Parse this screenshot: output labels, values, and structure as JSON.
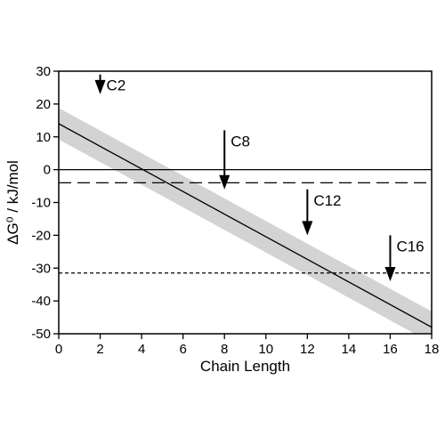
{
  "chart_data": {
    "type": "line",
    "xlabel": "Chain Length",
    "ylabel": "ΔG⁰ / kJ/mol",
    "xlim": [
      0,
      18
    ],
    "ylim": [
      -50,
      30
    ],
    "xticks": [
      "0",
      "2",
      "4",
      "6",
      "8",
      "10",
      "12",
      "14",
      "16",
      "18"
    ],
    "yticks": [
      "30",
      "20",
      "10",
      "0",
      "-10",
      "-20",
      "-30",
      "-40",
      "-50"
    ],
    "grid": false,
    "series": [
      {
        "style": "solid-line",
        "x": [
          0,
          18
        ],
        "y": [
          14,
          -48
        ]
      }
    ],
    "band": {
      "x": [
        0,
        18
      ],
      "upper": [
        18.8,
        -43.2
      ],
      "lower": [
        9.2,
        -52.8
      ],
      "color": "#d3d3d3"
    },
    "reference_lines": [
      {
        "y": 0,
        "style": "solid"
      },
      {
        "y": -4,
        "style": "long-dash"
      },
      {
        "y": -31.5,
        "style": "short-dash"
      }
    ],
    "annotations": [
      {
        "label": "C2",
        "x": 2,
        "y_from": 29,
        "y_to": 23
      },
      {
        "label": "C8",
        "x": 8,
        "y_from": 12,
        "y_to": -6
      },
      {
        "label": "C12",
        "x": 12,
        "y_from": -6,
        "y_to": -20
      },
      {
        "label": "C16",
        "x": 16,
        "y_from": -20,
        "y_to": -34
      }
    ]
  }
}
